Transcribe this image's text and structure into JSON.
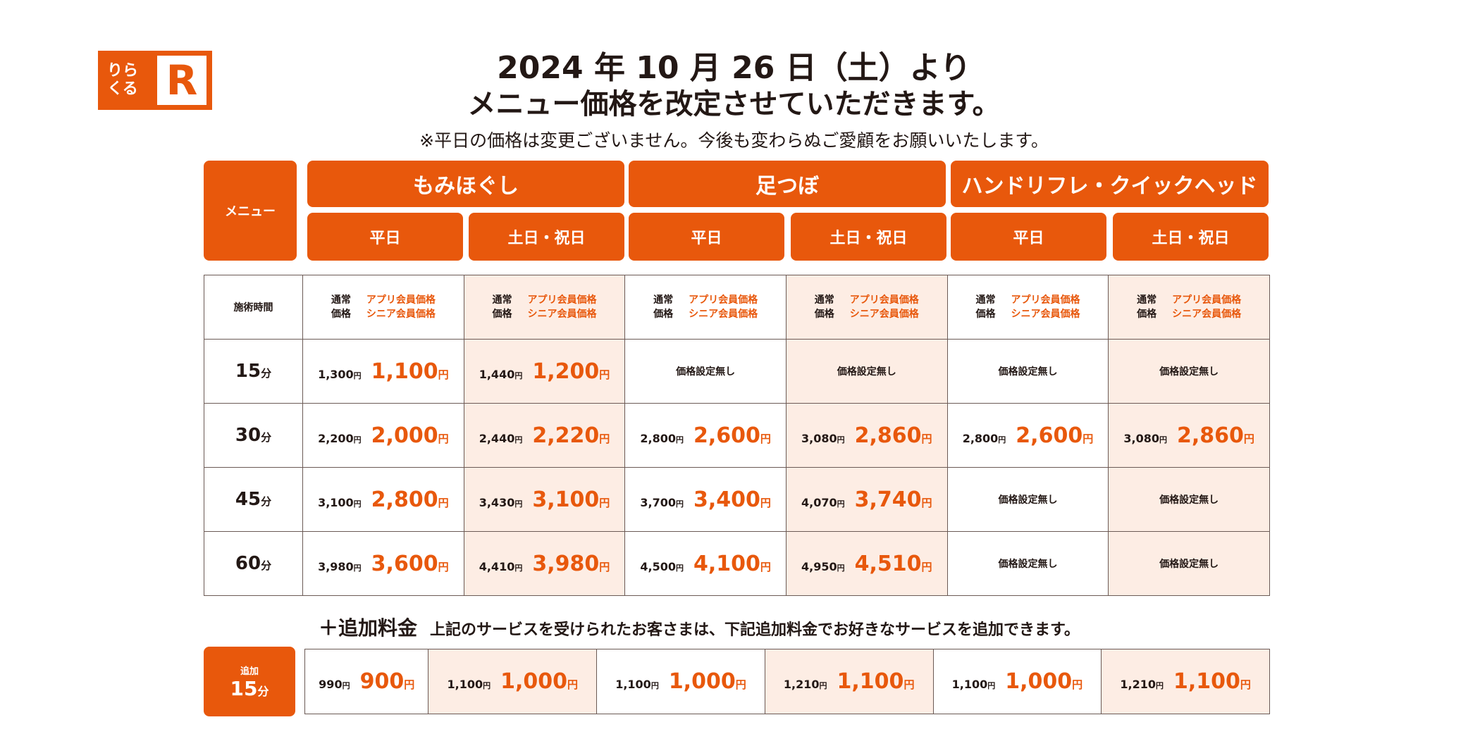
{
  "logo": {
    "text_line1": "りら",
    "text_line2": "くる",
    "mark": "R"
  },
  "header": {
    "line1": "2024 年 10 月 26 日（土）より",
    "line2": "メニュー価格を改定させていただきます。",
    "note": "※平日の価格は変更ございません。今後も変わらぬご愛顧をお願いいたします。"
  },
  "menu_label": "メニュー",
  "categories": [
    "もみほぐし",
    "足つぼ",
    "ハンドリフレ・クイックヘッド"
  ],
  "day_types": [
    "平日",
    "土日・祝日",
    "平日",
    "土日・祝日",
    "平日",
    "土日・祝日"
  ],
  "table": {
    "time_header": "施術時間",
    "price_header": {
      "regular_1": "通常",
      "regular_2": "価格",
      "member_1": "アプリ会員価格",
      "member_2": "シニア会員価格"
    },
    "yen": "円",
    "minute": "分",
    "none": "価格設定無し",
    "rows": [
      {
        "time": "15",
        "cells": [
          [
            "1,300",
            "1,100"
          ],
          [
            "1,440",
            "1,200"
          ],
          null,
          null,
          null,
          null
        ]
      },
      {
        "time": "30",
        "cells": [
          [
            "2,200",
            "2,000"
          ],
          [
            "2,440",
            "2,220"
          ],
          [
            "2,800",
            "2,600"
          ],
          [
            "3,080",
            "2,860"
          ],
          [
            "2,800",
            "2,600"
          ],
          [
            "3,080",
            "2,860"
          ]
        ]
      },
      {
        "time": "45",
        "cells": [
          [
            "3,100",
            "2,800"
          ],
          [
            "3,430",
            "3,100"
          ],
          [
            "3,700",
            "3,400"
          ],
          [
            "4,070",
            "3,740"
          ],
          null,
          null
        ]
      },
      {
        "time": "60",
        "cells": [
          [
            "3,980",
            "3,600"
          ],
          [
            "4,410",
            "3,980"
          ],
          [
            "4,500",
            "4,100"
          ],
          [
            "4,950",
            "4,510"
          ],
          null,
          null
        ]
      }
    ]
  },
  "addon": {
    "title": "＋追加料金",
    "description": "上記のサービスを受けられたお客さまは、下記追加料金でお好きなサービスを追加できます。",
    "label_small": "追加",
    "label_time": "15",
    "cells": [
      [
        "990",
        "900"
      ],
      [
        "1,100",
        "1,000"
      ],
      [
        "1,100",
        "1,000"
      ],
      [
        "1,210",
        "1,100"
      ],
      [
        "1,100",
        "1,000"
      ],
      [
        "1,210",
        "1,100"
      ]
    ]
  },
  "colors": {
    "accent": "#E8580C",
    "holiday_bg": "#FDEDE4"
  }
}
